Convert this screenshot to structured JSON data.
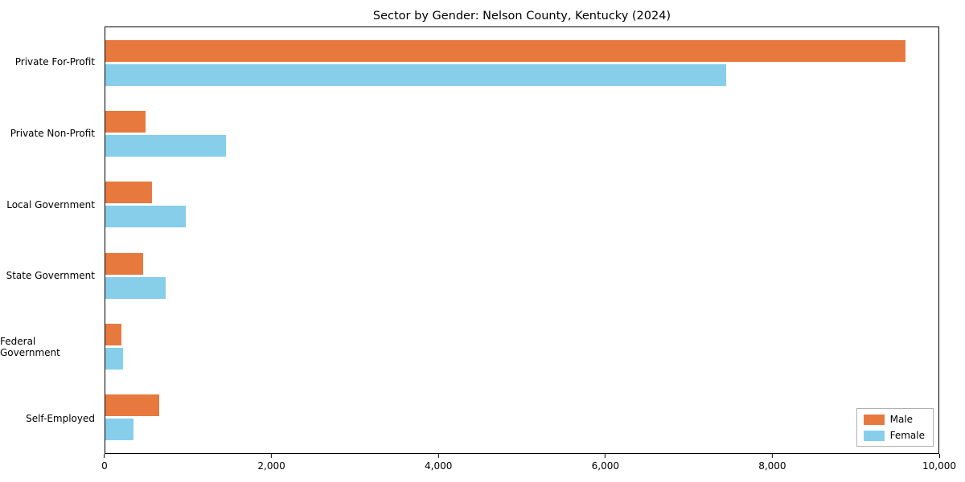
{
  "title": "Sector by Gender: Nelson County, Kentucky (2024)",
  "chart_data": {
    "type": "bar",
    "orientation": "horizontal",
    "title": "Sector by Gender: Nelson County, Kentucky (2024)",
    "categories": [
      "Private For-Profit",
      "Private Non-Profit",
      "Local Government",
      "State Government",
      "Federal Government",
      "Self-Employed"
    ],
    "series": [
      {
        "name": "Male",
        "color": "#e8793e",
        "values": [
          9600,
          480,
          560,
          450,
          195,
          650
        ]
      },
      {
        "name": "Female",
        "color": "#87ceeb",
        "values": [
          7450,
          1450,
          965,
          725,
          215,
          340
        ]
      }
    ],
    "xlim": [
      0,
      10000
    ],
    "xticks": [
      0,
      2000,
      4000,
      6000,
      8000,
      10000
    ],
    "xtick_labels": [
      "0",
      "2,000",
      "4,000",
      "6,000",
      "8,000",
      "10,000"
    ],
    "xlabel": "",
    "ylabel": "",
    "grid": false,
    "legend": {
      "position": "lower right",
      "entries": [
        "Male",
        "Female"
      ]
    }
  }
}
